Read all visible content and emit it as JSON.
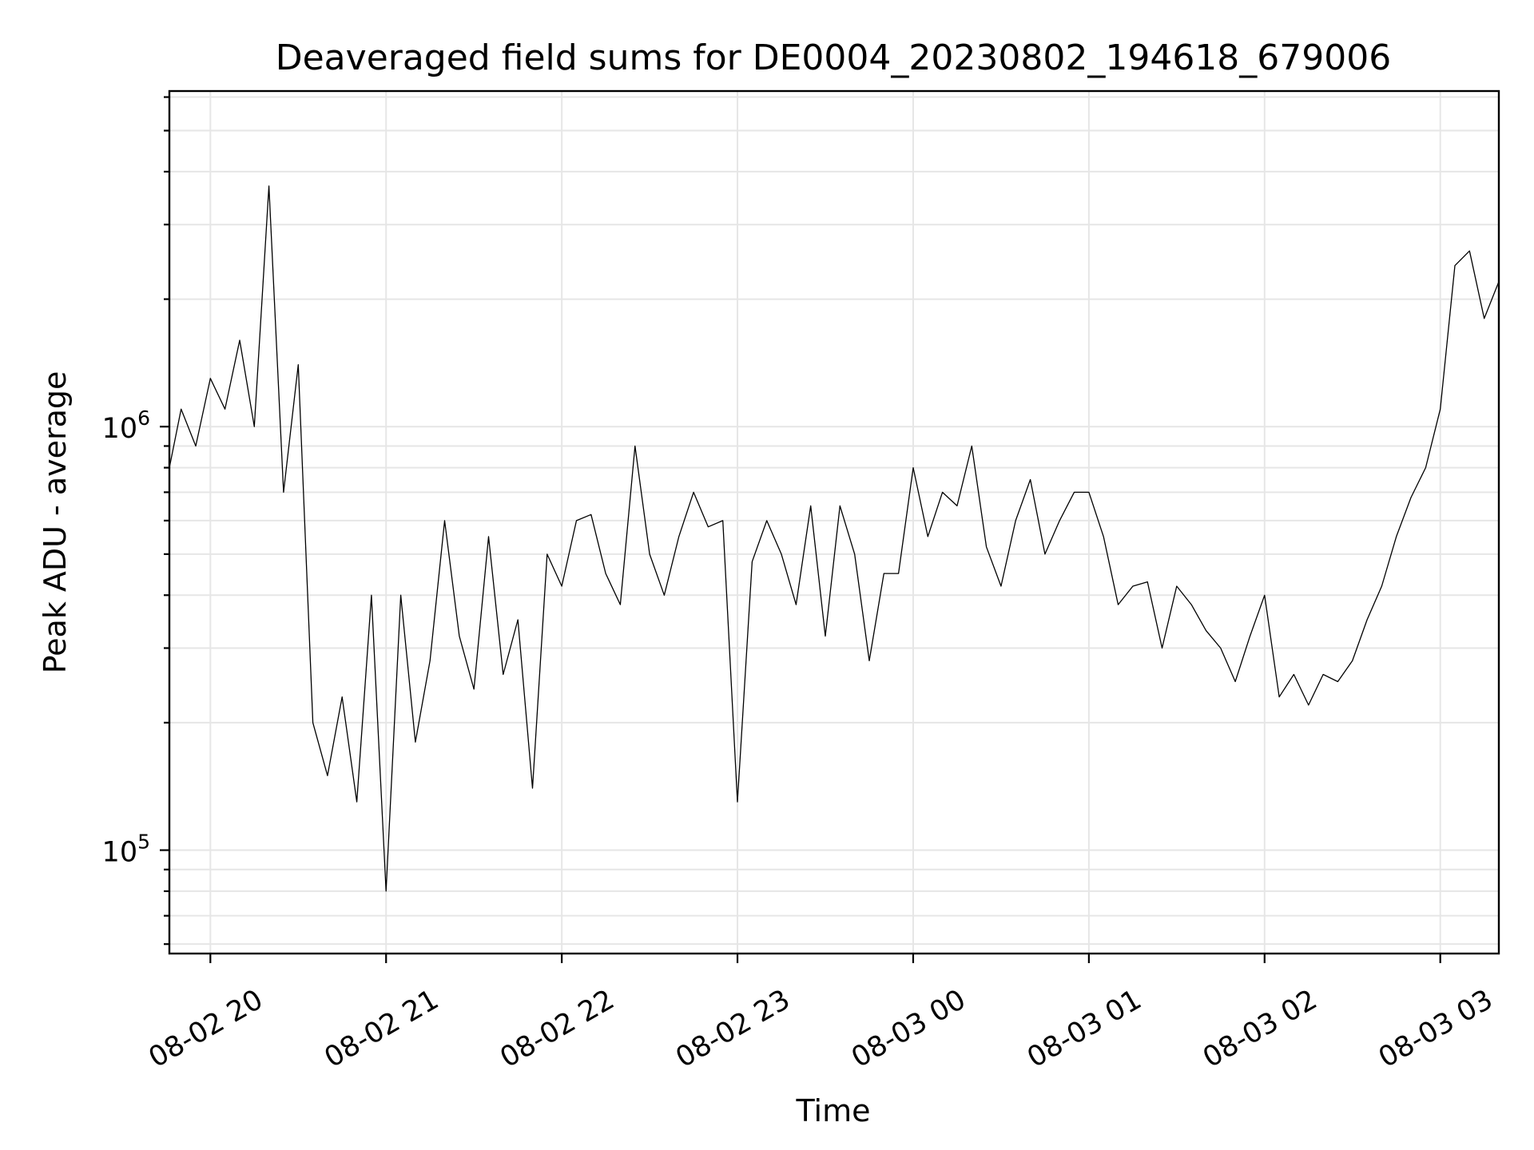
{
  "chart_data": {
    "type": "line",
    "title": "Deaveraged field sums for DE0004_20230802_194618_679006",
    "xlabel": "Time",
    "ylabel": "Peak ADU - average",
    "yscale": "log",
    "grid": true,
    "xlim": [
      "2023-08-02 19:46",
      "2023-08-03 03:20"
    ],
    "ylim": [
      57000,
      6200000
    ],
    "x_ticks": [
      {
        "value": "2023-08-02 20:00",
        "label": "08-02 20"
      },
      {
        "value": "2023-08-02 21:00",
        "label": "08-02 21"
      },
      {
        "value": "2023-08-02 22:00",
        "label": "08-02 22"
      },
      {
        "value": "2023-08-02 23:00",
        "label": "08-02 23"
      },
      {
        "value": "2023-08-03 00:00",
        "label": "08-03 00"
      },
      {
        "value": "2023-08-03 01:00",
        "label": "08-03 01"
      },
      {
        "value": "2023-08-03 02:00",
        "label": "08-03 02"
      },
      {
        "value": "2023-08-03 03:00",
        "label": "08-03 03"
      }
    ],
    "y_ticks": [
      {
        "value": 100000,
        "base": "10",
        "exp": "5"
      },
      {
        "value": 1000000,
        "base": "10",
        "exp": "6"
      }
    ],
    "series": [
      {
        "color": "#000000",
        "x": [
          "2023-08-02 19:46",
          "2023-08-02 19:50",
          "2023-08-02 19:55",
          "2023-08-02 20:00",
          "2023-08-02 20:05",
          "2023-08-02 20:10",
          "2023-08-02 20:15",
          "2023-08-02 20:20",
          "2023-08-02 20:25",
          "2023-08-02 20:30",
          "2023-08-02 20:35",
          "2023-08-02 20:40",
          "2023-08-02 20:45",
          "2023-08-02 20:50",
          "2023-08-02 20:55",
          "2023-08-02 21:00",
          "2023-08-02 21:05",
          "2023-08-02 21:10",
          "2023-08-02 21:15",
          "2023-08-02 21:20",
          "2023-08-02 21:25",
          "2023-08-02 21:30",
          "2023-08-02 21:35",
          "2023-08-02 21:40",
          "2023-08-02 21:45",
          "2023-08-02 21:50",
          "2023-08-02 21:55",
          "2023-08-02 22:00",
          "2023-08-02 22:05",
          "2023-08-02 22:10",
          "2023-08-02 22:15",
          "2023-08-02 22:20",
          "2023-08-02 22:25",
          "2023-08-02 22:30",
          "2023-08-02 22:35",
          "2023-08-02 22:40",
          "2023-08-02 22:45",
          "2023-08-02 22:50",
          "2023-08-02 22:55",
          "2023-08-02 23:00",
          "2023-08-02 23:05",
          "2023-08-02 23:10",
          "2023-08-02 23:15",
          "2023-08-02 23:20",
          "2023-08-02 23:25",
          "2023-08-02 23:30",
          "2023-08-02 23:35",
          "2023-08-02 23:40",
          "2023-08-02 23:45",
          "2023-08-02 23:50",
          "2023-08-02 23:55",
          "2023-08-03 00:00",
          "2023-08-03 00:05",
          "2023-08-03 00:10",
          "2023-08-03 00:15",
          "2023-08-03 00:20",
          "2023-08-03 00:25",
          "2023-08-03 00:30",
          "2023-08-03 00:35",
          "2023-08-03 00:40",
          "2023-08-03 00:45",
          "2023-08-03 00:50",
          "2023-08-03 00:55",
          "2023-08-03 01:00",
          "2023-08-03 01:05",
          "2023-08-03 01:10",
          "2023-08-03 01:15",
          "2023-08-03 01:20",
          "2023-08-03 01:25",
          "2023-08-03 01:30",
          "2023-08-03 01:35",
          "2023-08-03 01:40",
          "2023-08-03 01:45",
          "2023-08-03 01:50",
          "2023-08-03 01:55",
          "2023-08-03 02:00",
          "2023-08-03 02:05",
          "2023-08-03 02:10",
          "2023-08-03 02:15",
          "2023-08-03 02:20",
          "2023-08-03 02:25",
          "2023-08-03 02:30",
          "2023-08-03 02:35",
          "2023-08-03 02:40",
          "2023-08-03 02:45",
          "2023-08-03 02:50",
          "2023-08-03 02:55",
          "2023-08-03 03:00",
          "2023-08-03 03:05",
          "2023-08-03 03:10",
          "2023-08-03 03:15",
          "2023-08-03 03:20"
        ],
        "y": [
          800000,
          1100000,
          900000,
          1300000,
          1100000,
          1600000,
          1000000,
          3700000,
          700000,
          1400000,
          200000,
          150000,
          230000,
          130000,
          400000,
          80000,
          400000,
          180000,
          280000,
          600000,
          320000,
          240000,
          550000,
          260000,
          350000,
          140000,
          500000,
          420000,
          600000,
          620000,
          450000,
          380000,
          900000,
          500000,
          400000,
          550000,
          700000,
          580000,
          600000,
          130000,
          480000,
          600000,
          500000,
          380000,
          650000,
          320000,
          650000,
          500000,
          280000,
          450000,
          450000,
          800000,
          550000,
          700000,
          650000,
          900000,
          520000,
          420000,
          600000,
          750000,
          500000,
          600000,
          700000,
          700000,
          550000,
          380000,
          420000,
          430000,
          300000,
          420000,
          380000,
          330000,
          300000,
          250000,
          320000,
          400000,
          230000,
          260000,
          220000,
          260000,
          250000,
          280000,
          350000,
          420000,
          550000,
          680000,
          800000,
          1100000,
          2400000,
          2600000,
          1800000,
          2200000
        ]
      }
    ]
  }
}
